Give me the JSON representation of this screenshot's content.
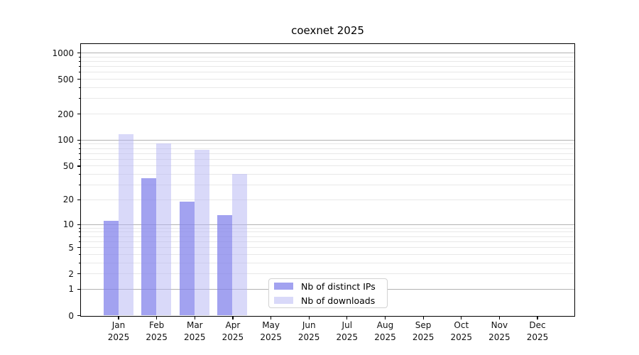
{
  "chart_data": {
    "type": "bar",
    "title": "coexnet 2025",
    "categories": [
      "Jan",
      "Feb",
      "Mar",
      "Apr",
      "May",
      "Jun",
      "Jul",
      "Aug",
      "Sep",
      "Oct",
      "Nov",
      "Dec"
    ],
    "category_year": "2025",
    "series": [
      {
        "name": "Nb of distinct IPs",
        "color": "rgba(131,131,235,0.75)",
        "color_flat": "#a2a2f0",
        "values": [
          11,
          36,
          19,
          13,
          null,
          null,
          null,
          null,
          null,
          null,
          null,
          null
        ]
      },
      {
        "name": "Nb of downloads",
        "color": "rgba(179,179,243,0.5)",
        "color_flat": "#d9d9f9",
        "values": [
          115,
          91,
          77,
          40,
          null,
          null,
          null,
          null,
          null,
          null,
          null,
          null
        ]
      }
    ],
    "y_axis": {
      "scale": "log1p",
      "tick_labels": [
        "1000",
        "500",
        "200",
        "100",
        "50",
        "20",
        "10",
        "5",
        "2",
        "1",
        "0"
      ],
      "tick_values": [
        1000,
        500,
        200,
        100,
        50,
        20,
        10,
        5,
        2,
        1,
        0
      ],
      "major_gridlines": [
        1,
        10,
        100,
        1000
      ],
      "minor_gridlines": [
        2,
        3,
        4,
        5,
        6,
        7,
        8,
        9,
        20,
        30,
        40,
        50,
        60,
        70,
        80,
        90,
        200,
        300,
        400,
        500,
        600,
        700,
        800,
        900
      ],
      "range": [
        0,
        1250
      ]
    },
    "legend": {
      "position": "bottom-center",
      "entries": [
        "Nb of distinct IPs",
        "Nb of downloads"
      ]
    },
    "grid": true,
    "colors": {
      "major_gridline": "#b2b2b2",
      "minor_gridline": "#e8e8e8",
      "axis": "#000000",
      "background": "#ffffff"
    }
  }
}
